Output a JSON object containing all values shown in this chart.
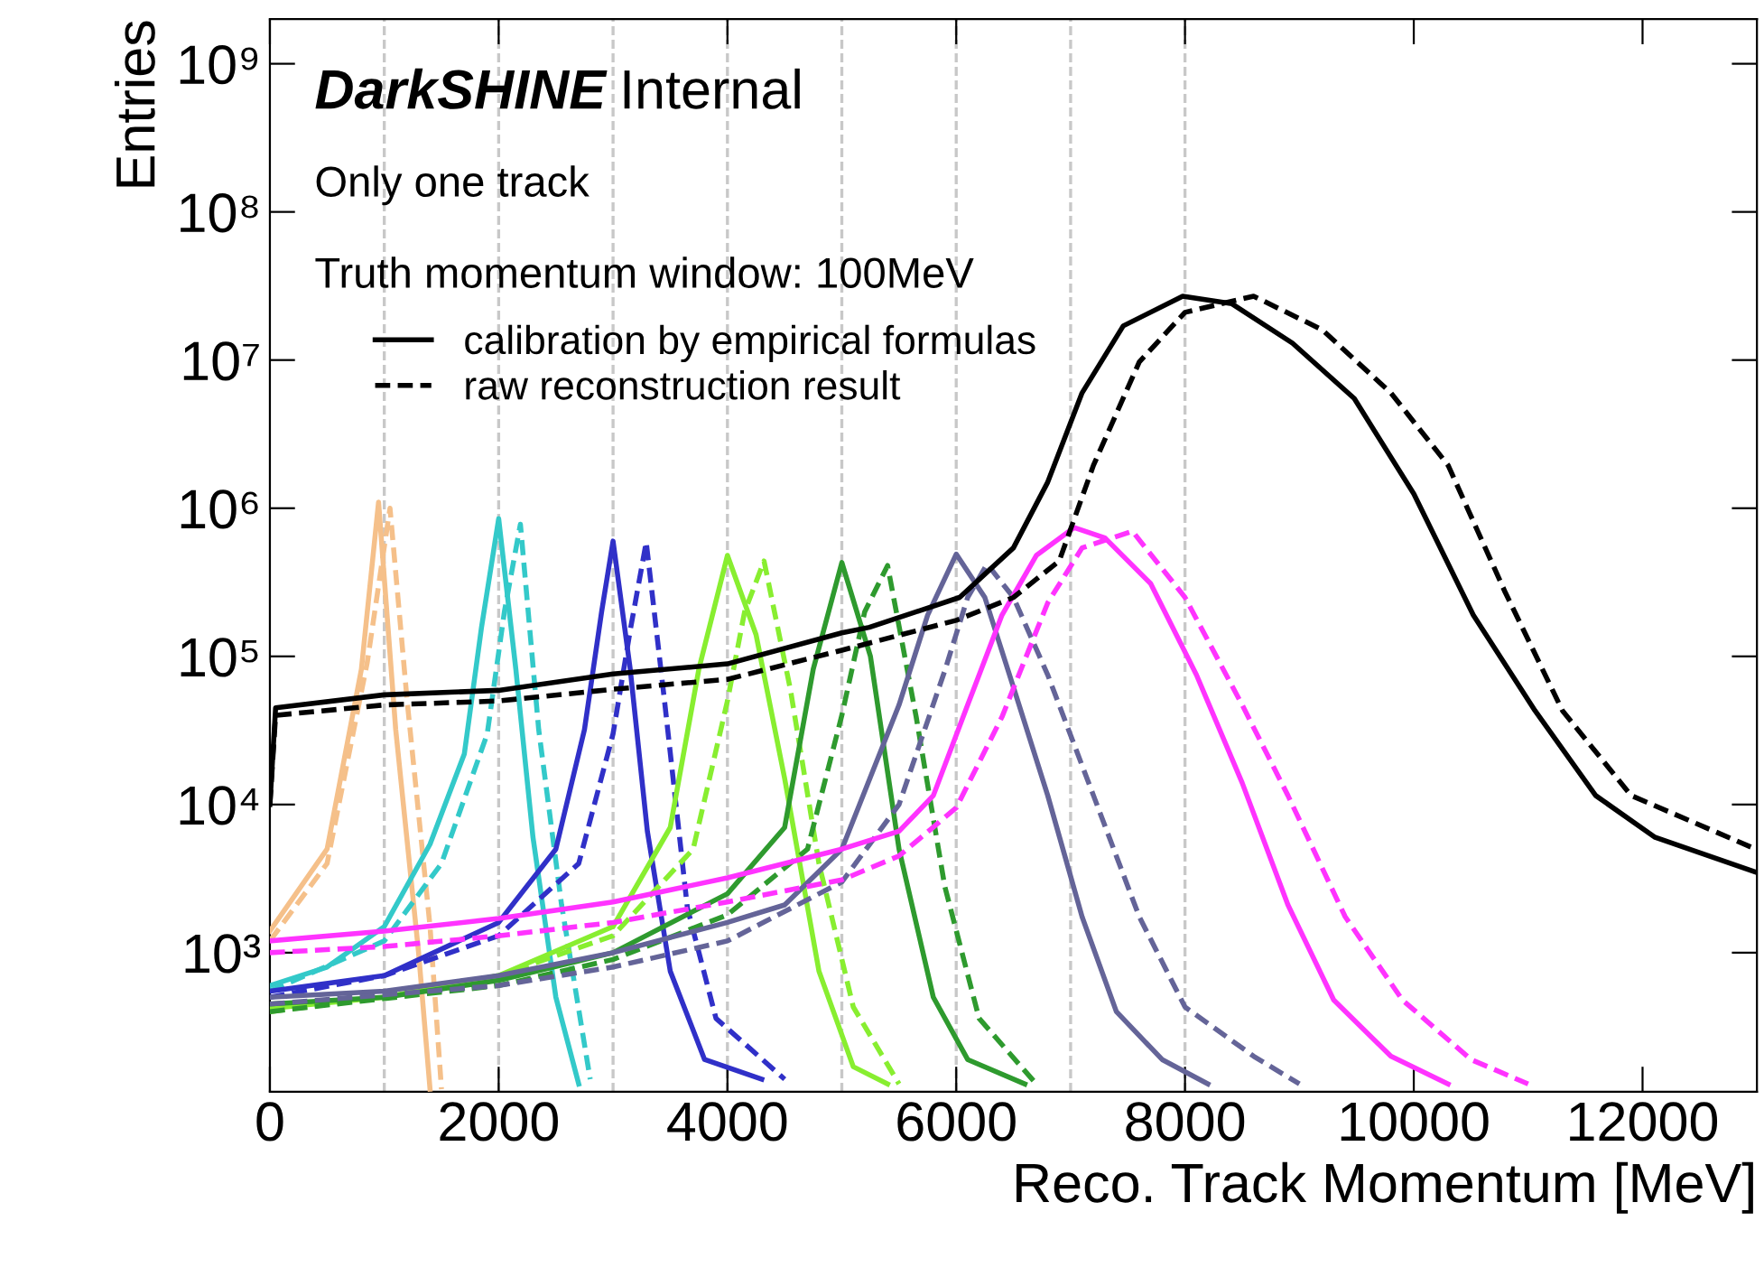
{
  "chart_data": {
    "type": "line",
    "xlabel": "Reco. Track Momentum [MeV]",
    "ylabel": "Entries",
    "log": "y",
    "xlim": [
      0,
      13000
    ],
    "xticks": [
      0,
      2000,
      4000,
      6000,
      8000,
      10000,
      12000
    ],
    "ylim": [
      115,
      2000000000
    ],
    "yticks": [
      {
        "value": 1000,
        "label": "10³"
      },
      {
        "value": 10000,
        "label": "10⁴"
      },
      {
        "value": 100000,
        "label": "10⁵"
      },
      {
        "value": 1000000,
        "label": "10⁶"
      },
      {
        "value": 10000000,
        "label": "10⁷"
      },
      {
        "value": 100000000,
        "label": "10⁸"
      },
      {
        "value": 1000000000,
        "label": "10⁹"
      }
    ],
    "grid": false,
    "legend": "top left",
    "annotations": [
      "DarkSHINE",
      "Internal",
      "Only one track",
      "Truth momentum window: 100MeV"
    ],
    "ref_lines": [
      {
        "axis": "x",
        "value": 1000,
        "color": "#c8c8c8",
        "line_style": "dashed"
      },
      {
        "axis": "x",
        "value": 2000,
        "color": "#c8c8c8",
        "line_style": "dashed"
      },
      {
        "axis": "x",
        "value": 3000,
        "color": "#c8c8c8",
        "line_style": "dashed"
      },
      {
        "axis": "x",
        "value": 4000,
        "color": "#c8c8c8",
        "line_style": "dashed"
      },
      {
        "axis": "x",
        "value": 5000,
        "color": "#c8c8c8",
        "line_style": "dashed"
      },
      {
        "axis": "x",
        "value": 6000,
        "color": "#c8c8c8",
        "line_style": "dashed"
      },
      {
        "axis": "x",
        "value": 7000,
        "color": "#c8c8c8",
        "line_style": "dashed"
      },
      {
        "axis": "x",
        "value": 8000,
        "color": "#c8c8c8",
        "line_style": "dashed"
      }
    ],
    "series": [
      {
        "color": "#f5c08a",
        "line_style": "solid",
        "x": [
          0,
          500,
          800,
          950,
          1100,
          1300,
          1400
        ],
        "values": [
          1400,
          5000,
          82000,
          1100000,
          32000,
          1000,
          120
        ]
      },
      {
        "color": "#f5c08a",
        "line_style": "dashed",
        "x": [
          0,
          500,
          850,
          1050,
          1200,
          1400,
          1500
        ],
        "values": [
          1200,
          4000,
          90000,
          1000000,
          50000,
          1500,
          120
        ]
      },
      {
        "color": "#33c9c9",
        "line_style": "solid",
        "x": [
          0,
          500,
          1000,
          1400,
          1700,
          1850,
          2000,
          2150,
          2300,
          2500,
          2700
        ],
        "values": [
          600,
          800,
          1500,
          5400,
          22000,
          157000,
          850000,
          82000,
          6000,
          500,
          130
        ]
      },
      {
        "color": "#33c9c9",
        "line_style": "dashed",
        "x": [
          0,
          1000,
          1500,
          1900,
          2050,
          2190,
          2350,
          2550,
          2800
        ],
        "values": [
          550,
          1200,
          4000,
          30000,
          200000,
          780000,
          32000,
          2100,
          140
        ]
      },
      {
        "color": "#3030c8",
        "line_style": "solid",
        "x": [
          0,
          1000,
          2000,
          2500,
          2750,
          2900,
          3000,
          3150,
          3300,
          3500,
          3800,
          4300
        ],
        "values": [
          550,
          700,
          1600,
          5000,
          32000,
          200000,
          600000,
          82000,
          6600,
          750,
          190,
          140
        ]
      },
      {
        "color": "#3030c8",
        "line_style": "dashed",
        "x": [
          0,
          1000,
          2000,
          2700,
          3000,
          3150,
          3290,
          3450,
          3650,
          3900,
          4500
        ],
        "values": [
          500,
          700,
          1300,
          4000,
          30000,
          150000,
          590000,
          50000,
          2000,
          360,
          140
        ]
      },
      {
        "color": "#88ee30",
        "line_style": "solid",
        "x": [
          0,
          1000,
          2000,
          3000,
          3500,
          3750,
          4000,
          4250,
          4500,
          4800,
          5100,
          5400
        ],
        "values": [
          420,
          500,
          700,
          1500,
          7000,
          82000,
          480000,
          140000,
          15000,
          750,
          170,
          130
        ]
      },
      {
        "color": "#88ee30",
        "line_style": "dashed",
        "x": [
          0,
          1000,
          2000,
          3000,
          3700,
          4000,
          4150,
          4320,
          4550,
          4800,
          5100,
          5500
        ],
        "values": [
          400,
          500,
          700,
          1300,
          5000,
          50000,
          200000,
          440000,
          60000,
          4000,
          430,
          130
        ]
      },
      {
        "color": "#2e9a2e",
        "line_style": "solid",
        "x": [
          0,
          1000,
          2000,
          3000,
          4000,
          4500,
          4750,
          5000,
          5250,
          5500,
          5800,
          6100,
          6600
        ],
        "values": [
          450,
          500,
          650,
          1000,
          2500,
          7000,
          82000,
          430000,
          100000,
          5000,
          500,
          190,
          130
        ]
      },
      {
        "color": "#2e9a2e",
        "line_style": "dashed",
        "x": [
          0,
          2000,
          3000,
          4000,
          4700,
          5000,
          5200,
          5400,
          5650,
          5900,
          6200,
          6700
        ],
        "values": [
          400,
          600,
          900,
          1800,
          5000,
          40000,
          200000,
          410000,
          39000,
          2800,
          360,
          130
        ]
      },
      {
        "color": "#646498",
        "line_style": "solid",
        "x": [
          0,
          1000,
          2000,
          3000,
          4000,
          4500,
          5000,
          5500,
          5750,
          6000,
          6250,
          6500,
          6800,
          7100,
          7400,
          7800,
          8200
        ],
        "values": [
          500,
          550,
          700,
          1000,
          1600,
          2100,
          5000,
          47000,
          190000,
          490000,
          250000,
          62000,
          11500,
          1750,
          400,
          190,
          130
        ]
      },
      {
        "color": "#646498",
        "line_style": "dashed",
        "x": [
          0,
          2000,
          3000,
          4000,
          5000,
          5500,
          5900,
          6100,
          6270,
          6500,
          6800,
          7200,
          7600,
          8000,
          8600,
          9000
        ],
        "values": [
          450,
          600,
          800,
          1200,
          3000,
          10000,
          80000,
          250000,
          420000,
          250000,
          75000,
          11500,
          1750,
          430,
          200,
          130
        ]
      },
      {
        "color": "#ff33ff",
        "line_style": "solid",
        "x": [
          0,
          1000,
          2000,
          3000,
          4000,
          5000,
          5500,
          5800,
          6100,
          6400,
          6700,
          7030,
          7300,
          7700,
          8100,
          8500,
          8900,
          9300,
          9800,
          10300
        ],
        "values": [
          1200,
          1400,
          1700,
          2200,
          3200,
          5000,
          6600,
          11500,
          47000,
          190000,
          480000,
          740000,
          630000,
          310000,
          75000,
          14000,
          2100,
          480,
          200,
          130
        ]
      },
      {
        "color": "#ff33ff",
        "line_style": "dashed",
        "x": [
          0,
          1000,
          2000,
          3000,
          4000,
          5000,
          5500,
          6000,
          6400,
          6800,
          7100,
          7540,
          8000,
          8500,
          8900,
          9400,
          9900,
          10500,
          11000
        ],
        "values": [
          1000,
          1100,
          1300,
          1600,
          2200,
          3100,
          4500,
          9500,
          39000,
          230000,
          540000,
          700000,
          250000,
          47000,
          11500,
          1750,
          480,
          190,
          130
        ]
      },
      {
        "name": "calibration by empirical formulas",
        "color": "#000000",
        "line_style": "solid",
        "x": [
          0,
          50,
          1000,
          2000,
          3000,
          4000,
          5000,
          5240,
          6030,
          6500,
          6800,
          7100,
          7460,
          7980,
          8410,
          8940,
          9480,
          10000,
          10520,
          11060,
          11590,
          12110,
          12990
        ],
        "values": [
          10000,
          45000,
          55000,
          59000,
          76000,
          89000,
          144000,
          157000,
          250000,
          540000,
          1500000,
          6000000,
          17000000,
          27000000,
          24000000,
          13000000,
          5500000,
          1250000,
          190000,
          43000,
          11500,
          6000,
          3500
        ]
      },
      {
        "name": "raw reconstruction result",
        "color": "#000000",
        "line_style": "dashed",
        "x": [
          0,
          50,
          1000,
          2000,
          3000,
          4000,
          5000,
          6000,
          6500,
          6900,
          7200,
          7600,
          8000,
          8600,
          9200,
          9800,
          10300,
          10800,
          11300,
          11900,
          12990
        ],
        "values": [
          10000,
          40000,
          47000,
          50000,
          60000,
          70000,
          110000,
          175000,
          250000,
          440000,
          1950000,
          9700000,
          21000000,
          27000000,
          16000000,
          6000000,
          1950000,
          270000,
          43000,
          11500,
          5000
        ]
      }
    ]
  }
}
